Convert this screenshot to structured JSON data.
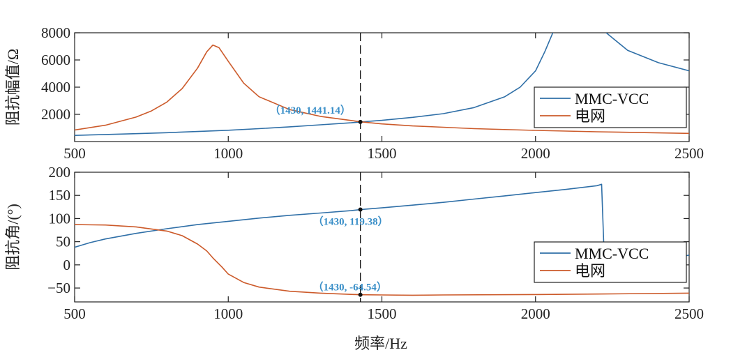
{
  "xlabel": "频率/Hz",
  "chart_data": [
    {
      "type": "line",
      "ylabel": "阻抗幅值/Ω",
      "xlim": [
        500,
        2500
      ],
      "ylim": [
        0,
        8000
      ],
      "xticks": [
        500,
        1000,
        1500,
        2000,
        2500
      ],
      "yticks": [
        2000,
        4000,
        6000,
        8000
      ],
      "grid": false,
      "legend_position": "right",
      "series": [
        {
          "name": "MMC-VCC",
          "color": "#2f6fa7",
          "x": [
            500,
            600,
            700,
            800,
            900,
            1000,
            1100,
            1200,
            1300,
            1400,
            1430,
            1500,
            1600,
            1700,
            1800,
            1900,
            1950,
            2000,
            2030,
            2060,
            2200,
            2230,
            2300,
            2400,
            2500
          ],
          "y": [
            450,
            520,
            580,
            650,
            740,
            830,
            950,
            1080,
            1230,
            1380,
            1441.14,
            1560,
            1780,
            2050,
            2500,
            3300,
            4000,
            5200,
            6600,
            8200,
            null,
            8000,
            6700,
            5800,
            5200
          ]
        },
        {
          "name": "电网",
          "color": "#cc5a2a",
          "x": [
            500,
            600,
            700,
            750,
            800,
            850,
            900,
            930,
            950,
            970,
            1000,
            1050,
            1100,
            1200,
            1300,
            1400,
            1430,
            1500,
            1600,
            1700,
            1800,
            2000,
            2200,
            2500
          ],
          "y": [
            850,
            1200,
            1800,
            2250,
            2900,
            3900,
            5400,
            6600,
            7100,
            6900,
            5900,
            4300,
            3300,
            2350,
            1850,
            1550,
            1450,
            1300,
            1150,
            1050,
            950,
            820,
            720,
            600
          ]
        }
      ],
      "annotations": [
        {
          "x": 1430,
          "y": 1441.14,
          "text": "（1430, 1441.14）"
        }
      ]
    },
    {
      "type": "line",
      "ylabel": "阻抗角/(°)",
      "xlim": [
        500,
        2500
      ],
      "ylim": [
        -80,
        200
      ],
      "xticks": [
        500,
        1000,
        1500,
        2000,
        2500
      ],
      "yticks": [
        -50,
        0,
        50,
        100,
        150,
        200
      ],
      "grid": false,
      "legend_position": "right",
      "series": [
        {
          "name": "MMC-VCC",
          "color": "#2f6fa7",
          "x": [
            500,
            550,
            600,
            700,
            800,
            900,
            1000,
            1100,
            1200,
            1300,
            1400,
            1430,
            1500,
            1600,
            1700,
            1800,
            1900,
            2000,
            2100,
            2200,
            2215,
            2225,
            2300,
            2400,
            2500
          ],
          "y": [
            38,
            48,
            56,
            68,
            78,
            87,
            94,
            101,
            107,
            112,
            117,
            119.38,
            123,
            129,
            135,
            142,
            149,
            156,
            163,
            171,
            174,
            -10,
            -2,
            10,
            21
          ]
        },
        {
          "name": "电网",
          "color": "#cc5a2a",
          "x": [
            500,
            600,
            700,
            800,
            850,
            900,
            930,
            950,
            980,
            1000,
            1050,
            1100,
            1200,
            1300,
            1430,
            1500,
            1600,
            1700,
            2000,
            2200,
            2500
          ],
          "y": [
            87,
            86,
            82,
            73,
            63,
            45,
            30,
            15,
            -5,
            -20,
            -38,
            -48,
            -57,
            -61,
            -64.54,
            -65,
            -65.5,
            -65,
            -64,
            -63,
            -61
          ]
        }
      ],
      "annotations": [
        {
          "x": 1430,
          "y": 119.38,
          "text": "（1430, 119.38）"
        },
        {
          "x": 1430,
          "y": -64.54,
          "text": "（1430, -64.54）"
        }
      ]
    }
  ]
}
